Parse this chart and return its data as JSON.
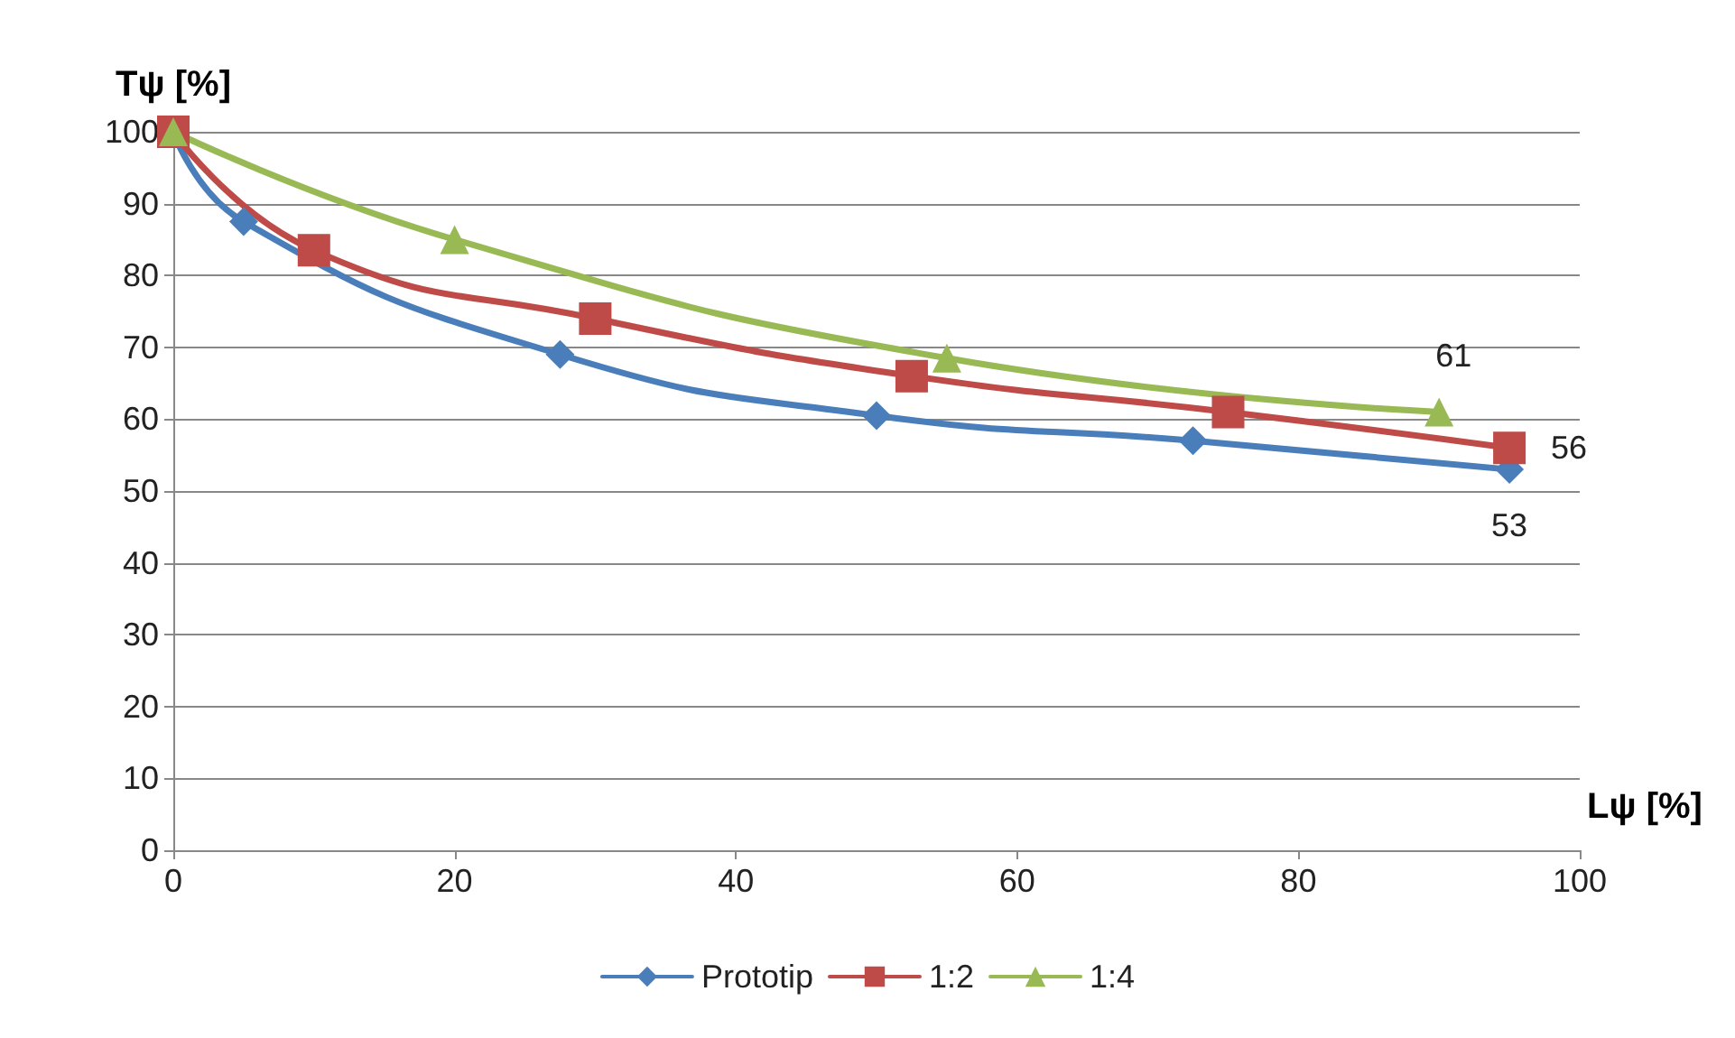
{
  "chart_data": {
    "type": "line",
    "ylabel": "Tψ [%]",
    "xlabel": "Lψ [%]",
    "xlim": [
      0,
      100
    ],
    "xticks": [
      0,
      20,
      40,
      60,
      80,
      100
    ],
    "ylim": [
      0,
      100
    ],
    "yticks": [
      0,
      10,
      20,
      30,
      40,
      50,
      60,
      70,
      80,
      90,
      100
    ],
    "grid": "y",
    "legend": "bottom",
    "line_style": "solid",
    "series": [
      {
        "name": "Prototip",
        "color": "#4a7ebb",
        "marker": "diamond",
        "x": [
          0,
          5,
          27.5,
          50,
          72.5,
          95
        ],
        "values": [
          100,
          87.5,
          69,
          60.5,
          57,
          53
        ],
        "value_labels": [
          null,
          null,
          null,
          null,
          null,
          "53"
        ]
      },
      {
        "name": "1:2",
        "color": "#be4b48",
        "marker": "square",
        "x": [
          0,
          10,
          30,
          52.5,
          75,
          95
        ],
        "values": [
          100,
          83.5,
          74,
          66,
          61,
          56
        ],
        "value_labels": [
          null,
          null,
          null,
          null,
          null,
          "56"
        ]
      },
      {
        "name": "1:4",
        "color": "#98b954",
        "marker": "triangle",
        "x": [
          0,
          20,
          55,
          90
        ],
        "values": [
          100,
          85,
          68.5,
          61
        ],
        "value_labels": [
          null,
          null,
          null,
          "61"
        ]
      }
    ]
  }
}
